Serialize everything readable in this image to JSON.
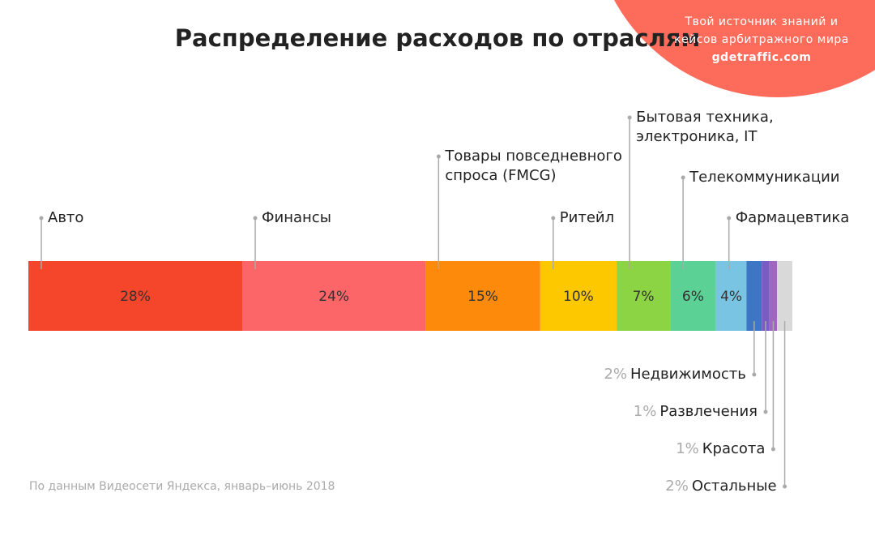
{
  "chart_data": {
    "type": "bar",
    "title": "Распределение расходов по отраслям",
    "categories": [
      "Авто",
      "Финансы",
      "Товары повседневного спроса (FMCG)",
      "Ритейл",
      "Бытовая техника, электроника, IT",
      "Телекоммуникации",
      "Фармацевтика",
      "Недвижимость",
      "Развлечения",
      "Красота",
      "Остальные"
    ],
    "values": [
      28,
      24,
      15,
      10,
      7,
      6,
      4,
      2,
      1,
      1,
      2
    ],
    "value_labels": [
      "28%",
      "24%",
      "15%",
      "10%",
      "7%",
      "6%",
      "4%",
      "2%",
      "1%",
      "1%",
      "2%"
    ],
    "colors": [
      "#f5452a",
      "#fd6669",
      "#fd8a0a",
      "#fdc800",
      "#8cd443",
      "#5bd196",
      "#78c4e2",
      "#3c76c4",
      "#7a5cc4",
      "#a066c0",
      "#d9d9d9"
    ],
    "source": "По данным Видеосети Яндекса, январь–июнь 2018"
  },
  "watermark": {
    "tagline": "Твой источник знаний и кейсов арбитражного мира",
    "site": "gdetraffic.com"
  }
}
